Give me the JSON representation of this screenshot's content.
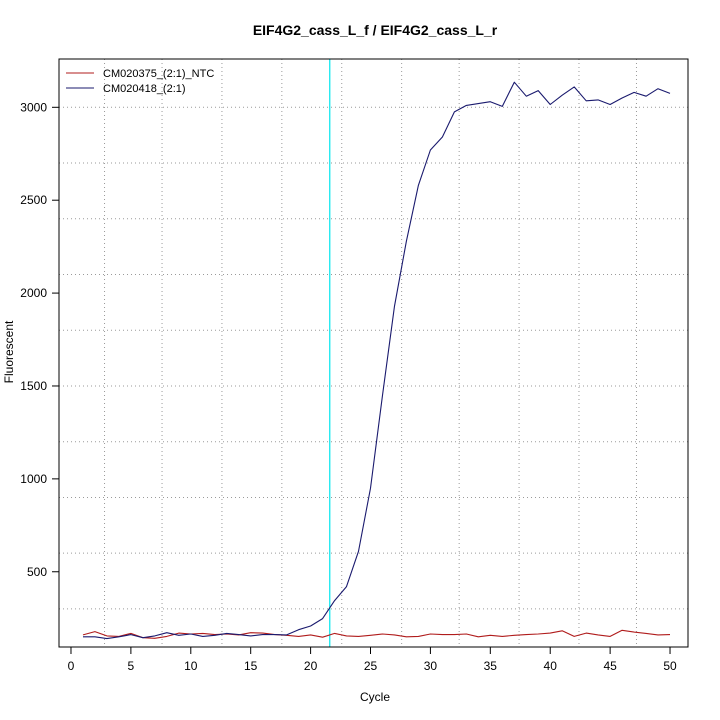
{
  "colors": {
    "ntc": "#b01c1c",
    "sample": "#1a1a6e",
    "threshold": "#00e5ee",
    "grid": "#9a9a9a"
  },
  "chart_data": {
    "type": "line",
    "title": "EIF4G2_cass_L_f / EIF4G2_cass_L_r",
    "xlabel": "Cycle",
    "ylabel": "Fluorescent",
    "xlim": [
      -1,
      51.5
    ],
    "ylim": [
      95,
      3260
    ],
    "x_ticks": [
      0,
      5,
      10,
      15,
      20,
      25,
      30,
      35,
      40,
      45,
      50
    ],
    "y_ticks": [
      500,
      1000,
      1500,
      2000,
      2500,
      3000
    ],
    "v_grid": [
      2.8,
      7.6,
      12.6,
      17.6,
      22.6,
      27.6,
      32.4,
      37.4,
      42.4,
      47.2
    ],
    "h_grid": [
      300,
      600,
      900,
      1200,
      1500,
      1800,
      2100,
      2400,
      2700,
      3000
    ],
    "threshold_x": 21.6,
    "grid": true,
    "legend_position": "top-left",
    "x": [
      1,
      2,
      3,
      4,
      5,
      6,
      7,
      8,
      9,
      10,
      11,
      12,
      13,
      14,
      15,
      16,
      17,
      18,
      19,
      20,
      21,
      22,
      23,
      24,
      25,
      26,
      27,
      28,
      29,
      30,
      31,
      32,
      33,
      34,
      35,
      36,
      37,
      38,
      39,
      40,
      41,
      42,
      43,
      44,
      45,
      46,
      47,
      48,
      49,
      50
    ],
    "series": [
      {
        "name": "CM020375_(2:1)_NTC",
        "color_key": "ntc",
        "values": [
          160,
          178,
          155,
          152,
          168,
          145,
          142,
          152,
          170,
          165,
          168,
          162,
          165,
          160,
          172,
          170,
          162,
          158,
          152,
          160,
          148,
          168,
          155,
          152,
          158,
          165,
          160,
          150,
          152,
          165,
          162,
          162,
          165,
          150,
          158,
          152,
          158,
          162,
          165,
          170,
          182,
          152,
          170,
          160,
          152,
          185,
          175,
          168,
          160,
          162
        ]
      },
      {
        "name": "CM020418_(2:1)",
        "color_key": "sample",
        "values": [
          150,
          150,
          140,
          150,
          162,
          145,
          155,
          172,
          158,
          165,
          152,
          158,
          168,
          162,
          155,
          162,
          162,
          160,
          188,
          208,
          248,
          345,
          420,
          610,
          950,
          1450,
          1930,
          2280,
          2580,
          2770,
          2840,
          2975,
          3010,
          3020,
          3030,
          3005,
          3135,
          3060,
          3090,
          3015,
          3065,
          3110,
          3035,
          3040,
          3015,
          3050,
          3080,
          3060,
          3100,
          3075
        ]
      }
    ]
  }
}
